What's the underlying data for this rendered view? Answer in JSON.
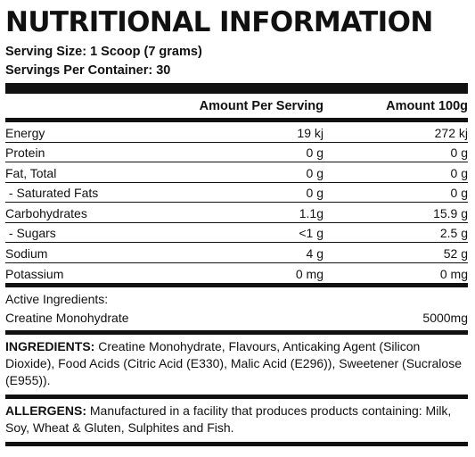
{
  "title": "NUTRITIONAL INFORMATION",
  "serving_size": "Serving Size: 1 Scoop (7 grams)",
  "servings_per_container": "Servings Per Container: 30",
  "table": {
    "columns": [
      "",
      "Amount Per Serving",
      "Amount 100g"
    ],
    "rows": [
      {
        "name": "Energy",
        "per_serving": "19 kj",
        "per_100g": "272 kj"
      },
      {
        "name": "Protein",
        "per_serving": "0 g",
        "per_100g": "0 g"
      },
      {
        "name": "Fat, Total",
        "per_serving": "0 g",
        "per_100g": "0 g"
      },
      {
        "name": " - Saturated Fats",
        "per_serving": "0 g",
        "per_100g": "0 g"
      },
      {
        "name": "Carbohydrates",
        "per_serving": "1.1g",
        "per_100g": "15.9 g"
      },
      {
        "name": " - Sugars",
        "per_serving": "<1 g",
        "per_100g": "2.5 g"
      },
      {
        "name": "Sodium",
        "per_serving": "4 g",
        "per_100g": "52 g"
      },
      {
        "name": "Potassium",
        "per_serving": "0 mg",
        "per_100g": "0 mg"
      }
    ]
  },
  "active": {
    "heading": "Active Ingredients:",
    "name": "Creatine Monohydrate",
    "amount": "5000mg"
  },
  "ingredients": {
    "label": "INGREDIENTS:",
    "text": " Creatine Monohydrate, Flavours, Anticaking Agent (Silicon Dioxide), Food Acids (Citric Acid (E330), Malic Acid (E296)), Sweetener (Sucralose (E955))."
  },
  "allergens": {
    "label": "ALLERGENS:",
    "text": " Manufactured in a facility that produces products containing: Milk, Soy, Wheat & Gluten, Sulphites and Fish."
  }
}
